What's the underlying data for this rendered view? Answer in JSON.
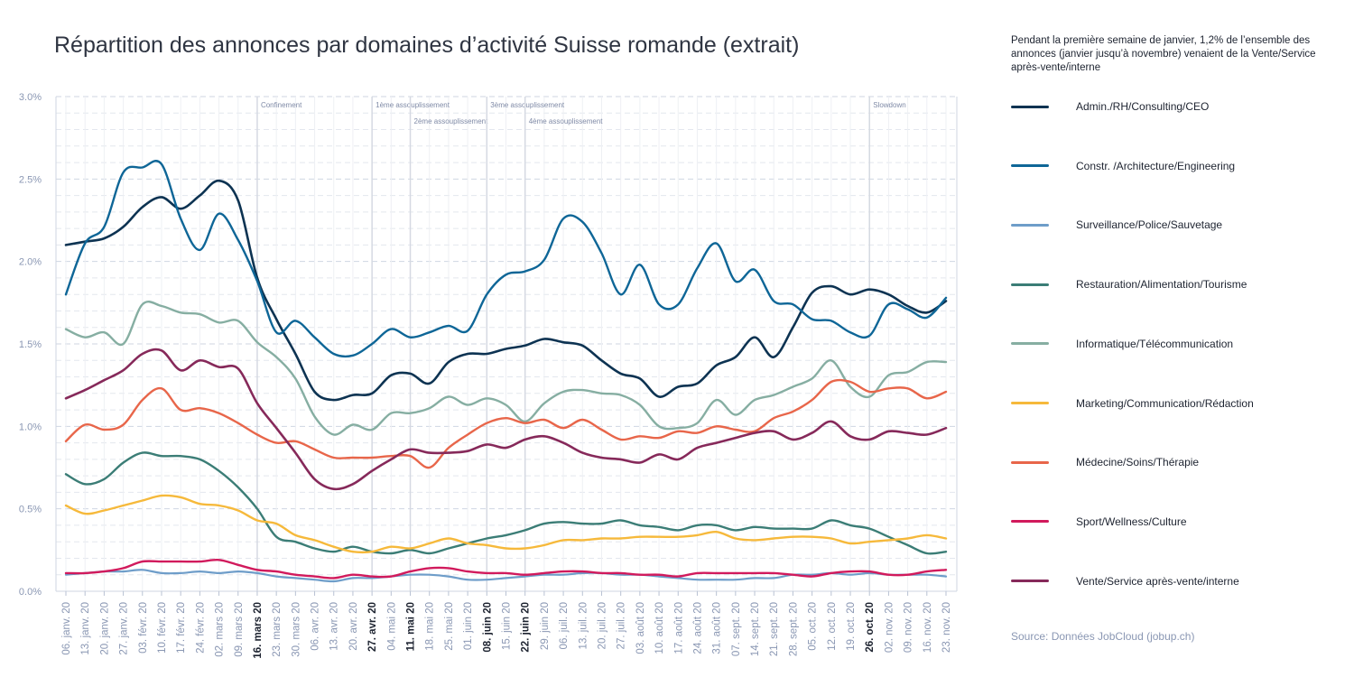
{
  "header": {
    "title": "Répartition des annonces par domaines d’activité Suisse romande (extrait)",
    "note": "Pendant la première semaine de janvier, 1,2% de l’ensemble des annonces (janvier jusqu’à novembre) venaient de la Vente/Service après-vente/interne",
    "source": "Source: Données JobCloud (jobup.ch)"
  },
  "chart_data": {
    "type": "line",
    "title": "Répartition des annonces par domaines d’activité Suisse romande (extrait)",
    "xlabel": "",
    "ylabel": "",
    "ylim": [
      0,
      3.0
    ],
    "yticks": [
      "0.0%",
      "0.5%",
      "1.0%",
      "1.5%",
      "2.0%",
      "2.5%",
      "3.0%"
    ],
    "grid": true,
    "legend_position": "right",
    "bold_categories": [
      "16. mars 20",
      "27. avr. 20",
      "11. mai 20",
      "08. juin 20",
      "22. juin 20",
      "26. oct. 20"
    ],
    "categories": [
      "06. janv. 20",
      "13. janv. 20",
      "20. janv. 20",
      "27. janv. 20",
      "03. févr. 20",
      "10. févr. 20",
      "17. févr. 20",
      "24. févr. 20",
      "02. mars 20",
      "09. mars 20",
      "16. mars 20",
      "23. mars 20",
      "30. mars 20",
      "06. avr. 20",
      "13. avr. 20",
      "20. avr. 20",
      "27. avr. 20",
      "04. mai 20",
      "11. mai 20",
      "18. mai 20",
      "25. mai 20",
      "01. juin 20",
      "08. juin 20",
      "15. juin 20",
      "22. juin 20",
      "29. juin 20",
      "06. juil. 20",
      "13. juil. 20",
      "20. juil. 20",
      "27. juil. 20",
      "03. août 20",
      "10. août 20",
      "17. août 20",
      "24. août 20",
      "31. août 20",
      "07. sept. 20",
      "14. sept. 20",
      "21. sept. 20",
      "28. sept. 20",
      "05. oct. 20",
      "12. oct. 20",
      "19. oct. 20",
      "26. oct. 20",
      "02. nov. 20",
      "09. nov. 20",
      "16. nov. 20",
      "23. nov. 20"
    ],
    "annotations": [
      {
        "label": "Confinement",
        "category": "16. mars 20",
        "row": 0
      },
      {
        "label": "1ème assouplissement",
        "category": "27. avr. 20",
        "row": 0
      },
      {
        "label": "2ème assouplissement",
        "category": "11. mai 20",
        "row": 1
      },
      {
        "label": "3ème assouplissement",
        "category": "08. juin 20",
        "row": 0
      },
      {
        "label": "4ème assouplissement",
        "category": "22. juin 20",
        "row": 1
      },
      {
        "label": "Slowdown",
        "category": "26. oct. 20",
        "row": 0
      }
    ],
    "series": [
      {
        "name": "Admin./RH/Consulting/CEO",
        "color": "#0d3352",
        "width": 2.6,
        "values": [
          2.1,
          2.12,
          2.14,
          2.21,
          2.33,
          2.39,
          2.32,
          2.4,
          2.49,
          2.37,
          1.9,
          1.65,
          1.44,
          1.21,
          1.16,
          1.19,
          1.2,
          1.31,
          1.32,
          1.26,
          1.39,
          1.44,
          1.44,
          1.47,
          1.49,
          1.53,
          1.51,
          1.49,
          1.4,
          1.32,
          1.29,
          1.18,
          1.24,
          1.26,
          1.37,
          1.42,
          1.54,
          1.42,
          1.6,
          1.81,
          1.85,
          1.8,
          1.83,
          1.8,
          1.73,
          1.69,
          1.76
        ]
      },
      {
        "name": "Constr. /Architecture/Engineering",
        "color": "#0e6697",
        "width": 2.4,
        "values": [
          1.8,
          2.11,
          2.21,
          2.54,
          2.57,
          2.59,
          2.26,
          2.07,
          2.29,
          2.13,
          1.88,
          1.57,
          1.64,
          1.54,
          1.44,
          1.43,
          1.5,
          1.59,
          1.54,
          1.57,
          1.61,
          1.58,
          1.8,
          1.92,
          1.94,
          2.01,
          2.26,
          2.24,
          2.05,
          1.8,
          1.98,
          1.74,
          1.74,
          1.96,
          2.11,
          1.88,
          1.95,
          1.76,
          1.74,
          1.65,
          1.64,
          1.57,
          1.55,
          1.74,
          1.71,
          1.66,
          1.78
        ]
      },
      {
        "name": "Surveillance/Police/Sauvetage",
        "color": "#6e9dc9",
        "width": 2.2,
        "values": [
          0.1,
          0.11,
          0.12,
          0.12,
          0.13,
          0.11,
          0.11,
          0.12,
          0.11,
          0.12,
          0.11,
          0.09,
          0.08,
          0.07,
          0.06,
          0.08,
          0.08,
          0.09,
          0.1,
          0.1,
          0.09,
          0.07,
          0.07,
          0.08,
          0.09,
          0.1,
          0.1,
          0.11,
          0.11,
          0.1,
          0.1,
          0.09,
          0.08,
          0.07,
          0.07,
          0.07,
          0.08,
          0.08,
          0.1,
          0.1,
          0.11,
          0.1,
          0.11,
          0.1,
          0.1,
          0.1,
          0.09
        ]
      },
      {
        "name": "Restauration/Alimentation/Tourisme",
        "color": "#3b7d76",
        "width": 2.4,
        "values": [
          0.71,
          0.65,
          0.68,
          0.78,
          0.84,
          0.82,
          0.82,
          0.8,
          0.73,
          0.63,
          0.5,
          0.33,
          0.3,
          0.26,
          0.24,
          0.27,
          0.24,
          0.23,
          0.25,
          0.23,
          0.26,
          0.29,
          0.32,
          0.34,
          0.37,
          0.41,
          0.42,
          0.41,
          0.41,
          0.43,
          0.4,
          0.39,
          0.37,
          0.4,
          0.4,
          0.37,
          0.39,
          0.38,
          0.38,
          0.38,
          0.43,
          0.4,
          0.38,
          0.33,
          0.28,
          0.23,
          0.24
        ]
      },
      {
        "name": "Informatique/Télécommunication",
        "color": "#86aea2",
        "width": 2.4,
        "values": [
          1.59,
          1.54,
          1.57,
          1.5,
          1.74,
          1.73,
          1.69,
          1.68,
          1.63,
          1.64,
          1.51,
          1.42,
          1.29,
          1.06,
          0.95,
          1.01,
          0.98,
          1.08,
          1.08,
          1.11,
          1.18,
          1.13,
          1.17,
          1.13,
          1.03,
          1.14,
          1.21,
          1.22,
          1.2,
          1.19,
          1.13,
          1.0,
          0.99,
          1.02,
          1.16,
          1.07,
          1.16,
          1.19,
          1.24,
          1.29,
          1.4,
          1.24,
          1.18,
          1.31,
          1.33,
          1.39,
          1.39
        ]
      },
      {
        "name": "Marketing/Communication/Rédaction",
        "color": "#f6b93b",
        "width": 2.4,
        "values": [
          0.52,
          0.47,
          0.49,
          0.52,
          0.55,
          0.58,
          0.57,
          0.53,
          0.52,
          0.49,
          0.43,
          0.41,
          0.34,
          0.31,
          0.27,
          0.24,
          0.24,
          0.27,
          0.26,
          0.29,
          0.32,
          0.29,
          0.28,
          0.26,
          0.26,
          0.28,
          0.31,
          0.31,
          0.32,
          0.32,
          0.33,
          0.33,
          0.33,
          0.34,
          0.36,
          0.32,
          0.31,
          0.32,
          0.33,
          0.33,
          0.32,
          0.29,
          0.3,
          0.31,
          0.32,
          0.34,
          0.32
        ]
      },
      {
        "name": "Médecine/Soins/Thérapie",
        "color": "#e8664a",
        "width": 2.4,
        "values": [
          0.91,
          1.01,
          0.98,
          1.01,
          1.16,
          1.23,
          1.1,
          1.11,
          1.08,
          1.02,
          0.95,
          0.9,
          0.91,
          0.86,
          0.81,
          0.81,
          0.81,
          0.82,
          0.82,
          0.75,
          0.87,
          0.95,
          1.02,
          1.05,
          1.02,
          1.04,
          0.99,
          1.04,
          0.98,
          0.92,
          0.94,
          0.93,
          0.97,
          0.96,
          1.0,
          0.98,
          0.97,
          1.05,
          1.09,
          1.16,
          1.27,
          1.27,
          1.21,
          1.23,
          1.23,
          1.17,
          1.21
        ]
      },
      {
        "name": "Sport/Wellness/Culture",
        "color": "#d11a5c",
        "width": 2.4,
        "values": [
          0.11,
          0.11,
          0.12,
          0.14,
          0.18,
          0.18,
          0.18,
          0.18,
          0.19,
          0.16,
          0.13,
          0.12,
          0.1,
          0.09,
          0.08,
          0.1,
          0.09,
          0.09,
          0.12,
          0.14,
          0.14,
          0.12,
          0.11,
          0.11,
          0.1,
          0.11,
          0.12,
          0.12,
          0.11,
          0.11,
          0.1,
          0.1,
          0.09,
          0.11,
          0.11,
          0.11,
          0.11,
          0.11,
          0.1,
          0.09,
          0.11,
          0.12,
          0.12,
          0.1,
          0.1,
          0.12,
          0.13
        ]
      },
      {
        "name": "Vente/Service après-vente/interne",
        "color": "#86295a",
        "width": 2.6,
        "values": [
          1.17,
          1.22,
          1.28,
          1.34,
          1.44,
          1.46,
          1.34,
          1.4,
          1.36,
          1.35,
          1.14,
          0.99,
          0.84,
          0.68,
          0.62,
          0.65,
          0.73,
          0.8,
          0.86,
          0.84,
          0.84,
          0.85,
          0.89,
          0.87,
          0.92,
          0.94,
          0.9,
          0.84,
          0.81,
          0.8,
          0.78,
          0.83,
          0.8,
          0.87,
          0.9,
          0.93,
          0.96,
          0.97,
          0.92,
          0.96,
          1.03,
          0.94,
          0.92,
          0.97,
          0.96,
          0.95,
          0.99
        ]
      }
    ]
  }
}
